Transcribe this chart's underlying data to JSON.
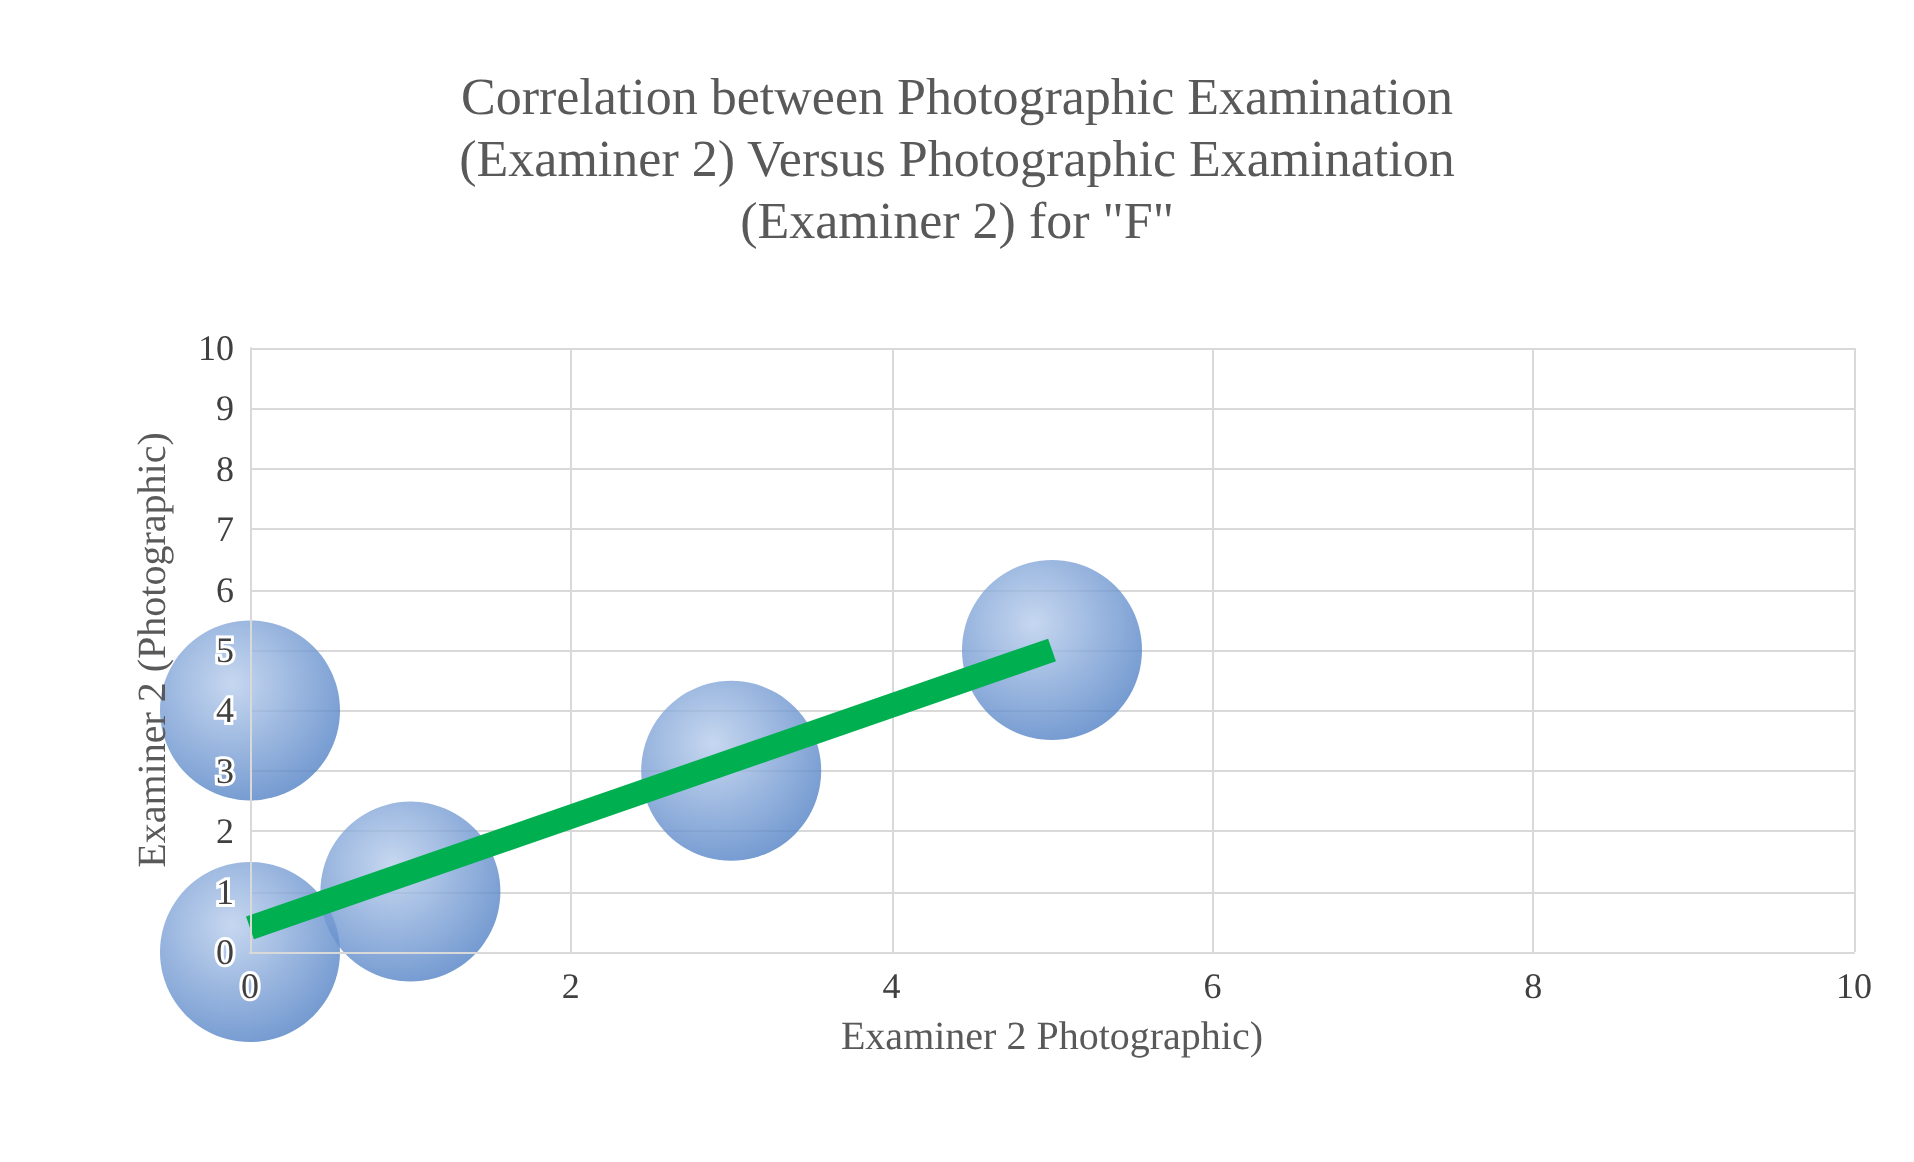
{
  "chart_data": {
    "type": "bubble",
    "title": "Correlation between Photographic Examination\n(Examiner 2) Versus Photographic Examination\n(Examiner 2) for \"F\"",
    "xlabel": "Examiner 2 Photographic)",
    "ylabel": "Examiner 2 (Photographic)",
    "xlim": [
      0,
      10
    ],
    "xticks": [
      0,
      2,
      4,
      6,
      8,
      10
    ],
    "ylim": [
      0,
      10
    ],
    "yticks": [
      0,
      1,
      2,
      3,
      4,
      5,
      6,
      7,
      8,
      9,
      10
    ],
    "grid": true,
    "series": [
      {
        "color": "#4f7fc4",
        "x": [
          0,
          0,
          1,
          3,
          5
        ],
        "values": [
          0,
          4,
          1,
          3,
          5
        ],
        "sizes": [
          1,
          1,
          1,
          1,
          1
        ]
      },
      {
        "type": "line",
        "color": "#00b050",
        "x": [
          0,
          5
        ],
        "values": [
          0.4,
          5
        ],
        "marker": "none"
      }
    ]
  }
}
